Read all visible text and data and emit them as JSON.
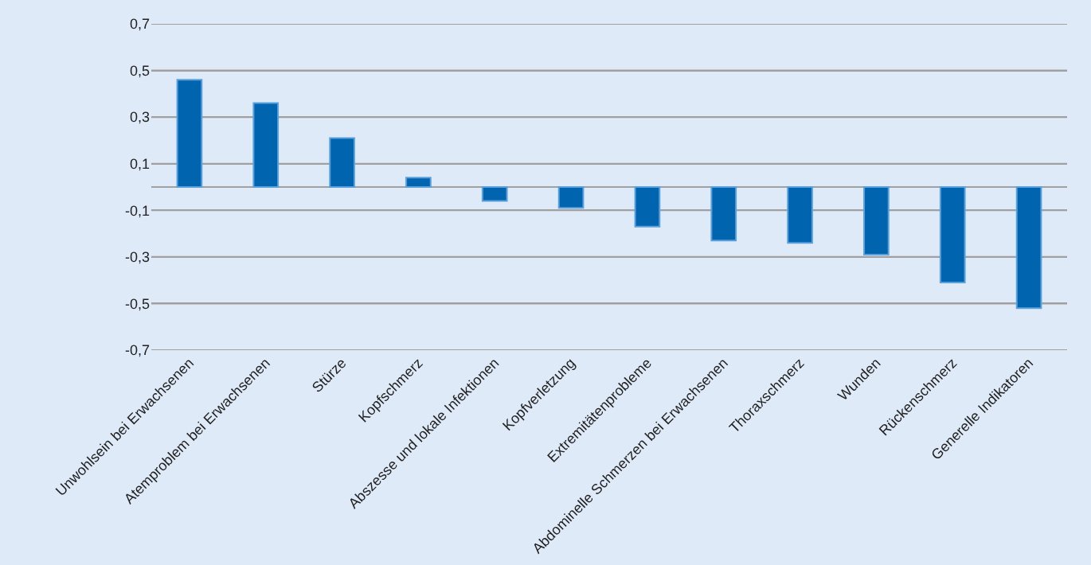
{
  "chart_data": {
    "type": "bar",
    "categories": [
      "Unwohlsein bei Erwachsenen",
      "Atemproblem bei Erwachsenen",
      "Stürze",
      "Kopfschmerz",
      "Abszesse und lokale Infektionen",
      "Kopfverletzung",
      "Extremitätenprobleme",
      "Abdominelle Schmerzen bei Erwachsenen",
      "Thoraxschmerz",
      "Wunden",
      "Rückenschmerz",
      "Generelle Indikatoren"
    ],
    "values": [
      0.46,
      0.36,
      0.21,
      0.04,
      -0.06,
      -0.09,
      -0.17,
      -0.23,
      -0.24,
      -0.29,
      -0.41,
      -0.52
    ],
    "color": "#0064ae",
    "ylim": [
      -0.7,
      0.7
    ],
    "yticks": [
      {
        "value": -0.7,
        "label": "-0,7"
      },
      {
        "value": -0.5,
        "label": "-0,5"
      },
      {
        "value": -0.3,
        "label": "-0,3"
      },
      {
        "value": -0.1,
        "label": "-0,1"
      },
      {
        "value": 0.1,
        "label": "0,1"
      },
      {
        "value": 0.3,
        "label": "0,3"
      },
      {
        "value": 0.5,
        "label": "0,5"
      },
      {
        "value": 0.7,
        "label": "0,7"
      }
    ],
    "grid": "y"
  }
}
